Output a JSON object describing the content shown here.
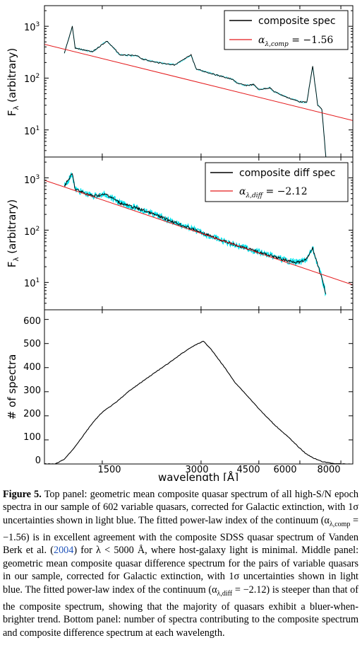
{
  "figure": {
    "xlabel": "wavelength [Å]",
    "x_ticks": [
      "1500",
      "3000",
      "4500",
      "6000",
      "8000"
    ],
    "panels": [
      {
        "ylabel": "F",
        "ylabel_sub": "λ",
        "ylabel_rest": " (arbitrary)",
        "y_ticks": [
          "10",
          "10",
          "10"
        ],
        "y_tick_exps": [
          "3",
          "2",
          "1"
        ],
        "legend": {
          "line_label": "composite spec",
          "fit_label_sym": "α",
          "fit_label_sub": "λ,comp",
          "fit_label_val": " = −1.56"
        }
      },
      {
        "ylabel": "F",
        "ylabel_sub": "λ",
        "ylabel_rest": " (arbitrary)",
        "y_ticks": [
          "10",
          "10",
          "10"
        ],
        "y_tick_exps": [
          "3",
          "2",
          "1"
        ],
        "legend": {
          "line_label": "composite diff spec",
          "fit_label_sym": "α",
          "fit_label_sub": "λ,diff",
          "fit_label_val": " = −2.12"
        }
      },
      {
        "ylabel": "# of spectra",
        "y_ticks": [
          "0",
          "100",
          "200",
          "300",
          "400",
          "500",
          "600"
        ]
      }
    ]
  },
  "chart_data": [
    {
      "type": "line",
      "title": "",
      "xlabel": "",
      "ylabel": "Fλ (arbitrary)",
      "xscale": "log",
      "yscale": "log",
      "xlim": [
        1000,
        8700
      ],
      "ylim": [
        3,
        2500
      ],
      "grid": false,
      "legend_position": "top-right",
      "colors": {
        "spectrum": "#000000",
        "fit": "#e41a1c"
      },
      "series": [
        {
          "name": "composite spec",
          "x": [
            1150,
            1216,
            1240,
            1400,
            1549,
            1700,
            1909,
            2000,
            2200,
            2500,
            2798,
            2900,
            3000,
            3426,
            3727,
            3869,
            4102,
            4340,
            4500,
            4861,
            5007,
            5500,
            6000,
            6300,
            6563,
            6800,
            7000,
            7200
          ],
          "y": [
            300,
            1000,
            380,
            320,
            520,
            280,
            270,
            230,
            200,
            180,
            280,
            150,
            140,
            110,
            95,
            80,
            72,
            75,
            60,
            65,
            55,
            42,
            35,
            34,
            170,
            30,
            25,
            3
          ]
        },
        {
          "name": "αλ,comp = −1.56",
          "x": [
            1000,
            8700
          ],
          "y": [
            450,
            15.2
          ]
        }
      ]
    },
    {
      "type": "line",
      "title": "",
      "xlabel": "",
      "ylabel": "Fλ (arbitrary)",
      "xscale": "log",
      "yscale": "log",
      "xlim": [
        1000,
        8700
      ],
      "ylim": [
        3,
        2500
      ],
      "grid": false,
      "legend_position": "top-right",
      "colors": {
        "spectrum": "#000000",
        "uncertainty": "#00e5ee",
        "fit": "#e41a1c"
      },
      "series": [
        {
          "name": "composite diff spec",
          "x": [
            1150,
            1216,
            1240,
            1400,
            1549,
            1700,
            2000,
            2500,
            3000,
            3500,
            4000,
            4500,
            5000,
            5500,
            6000,
            6300,
            6563,
            6800,
            7000,
            7200
          ],
          "y": [
            700,
            1200,
            600,
            450,
            480,
            330,
            240,
            140,
            90,
            62,
            48,
            38,
            31,
            26,
            24,
            28,
            45,
            22,
            12,
            6
          ]
        },
        {
          "name": "αλ,diff = −2.12",
          "x": [
            1000,
            8700
          ],
          "y": [
            900,
            9
          ]
        }
      ]
    },
    {
      "type": "line",
      "title": "",
      "xlabel": "wavelength [Å]",
      "ylabel": "# of spectra",
      "xscale": "log",
      "yscale": "linear",
      "xlim": [
        1000,
        8700
      ],
      "ylim": [
        0,
        640
      ],
      "grid": false,
      "series": [
        {
          "name": "",
          "x": [
            1000,
            1080,
            1150,
            1220,
            1300,
            1400,
            1500,
            1650,
            1800,
            2000,
            2200,
            2400,
            2600,
            2800,
            2950,
            3050,
            3200,
            3500,
            3800,
            4200,
            4600,
            5000,
            5500,
            6000,
            6300,
            6600,
            7000,
            7500,
            8000,
            8700
          ],
          "y": [
            0,
            0,
            20,
            60,
            110,
            170,
            215,
            255,
            300,
            345,
            385,
            420,
            455,
            485,
            500,
            510,
            480,
            410,
            340,
            275,
            215,
            165,
            115,
            65,
            40,
            25,
            10,
            3,
            0,
            0
          ]
        }
      ]
    }
  ],
  "caption": {
    "label": "Figure 5.",
    "text_1": " Top panel: geometric mean composite quasar spectrum of all high-S/N epoch spectra in our sample of 602 variable quasars, corrected for Galactic extinction, with 1σ uncertainties shown in light blue. The fitted power-law index of the continuum (α",
    "sub_1": "λ,comp",
    "text_2": " = −1.56) is in excellent agreement with the composite SDSS quasar spectrum of Vanden Berk et al. (",
    "cite": "2004",
    "text_3": ") for λ < 5000 Å, where host-galaxy light is minimal. Middle panel: geometric mean composite quasar difference spectrum for the pairs of variable quasars in our sample, corrected for Galactic extinction, with 1σ uncertainties shown in light blue. The fitted power-law index of the continuum (α",
    "sub_2": "λ,diff",
    "text_4": " = −2.12) is steeper than that of the composite spectrum, showing that the majority of quasars exhibit a bluer-when-brighter trend. Bottom panel: number of spectra contributing to the composite spectrum and composite difference spectrum at each wavelength."
  }
}
